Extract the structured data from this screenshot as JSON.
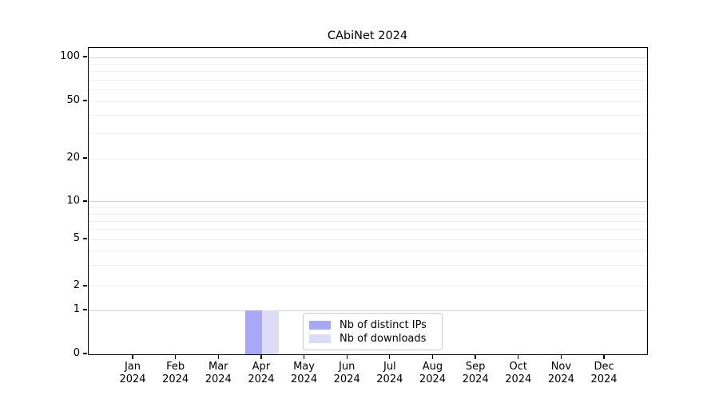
{
  "chart_data": {
    "type": "bar",
    "title": "CAbiNet 2024",
    "categories": [
      "Jan",
      "Feb",
      "Mar",
      "Apr",
      "May",
      "Jun",
      "Jul",
      "Aug",
      "Sep",
      "Oct",
      "Nov",
      "Dec"
    ],
    "category_year": "2024",
    "series": [
      {
        "name": "Nb of distinct IPs",
        "color": "#a8a8f8",
        "values": [
          0,
          0,
          0,
          1,
          0,
          0,
          0,
          0,
          0,
          0,
          0,
          0
        ]
      },
      {
        "name": "Nb of downloads",
        "color": "#dcdcf8",
        "values": [
          0,
          0,
          0,
          1,
          0,
          0,
          0,
          0,
          0,
          0,
          0,
          0
        ]
      }
    ],
    "y_axis": {
      "scale": "symlog",
      "tick_values": [
        0,
        1,
        2,
        5,
        10,
        20,
        50,
        100
      ],
      "tick_labels": [
        "0",
        "1",
        "2",
        "5",
        "10",
        "20",
        "50",
        "100"
      ],
      "minor_tick_values": [
        3,
        4,
        6,
        7,
        8,
        9,
        30,
        40,
        60,
        70,
        80,
        90
      ],
      "major_grid_values": [
        1,
        10,
        100
      ],
      "range": [
        0,
        110
      ]
    },
    "x_axis": {
      "label_format": "month over year, two lines"
    },
    "legend": {
      "position": "lower center inside plot"
    },
    "grid": {
      "horizontal": true,
      "vertical": false,
      "minor": true
    }
  }
}
